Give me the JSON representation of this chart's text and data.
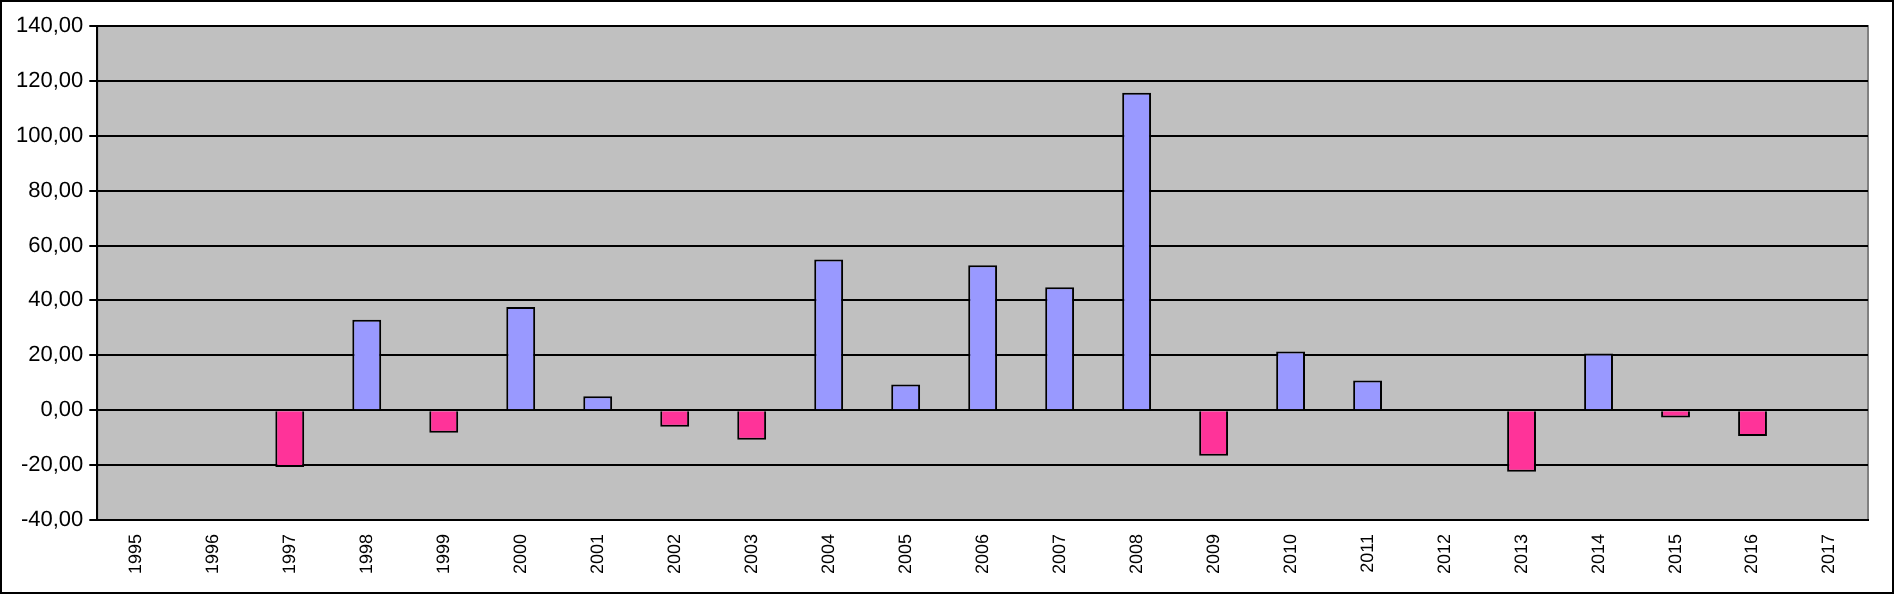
{
  "chart_data": {
    "type": "bar",
    "categories": [
      "1995",
      "1996",
      "1997",
      "1998",
      "1999",
      "2000",
      "2001",
      "2002",
      "2003",
      "2004",
      "2005",
      "2006",
      "2007",
      "2008",
      "2009",
      "2010",
      "2011",
      "2012",
      "2013",
      "2014",
      "2015",
      "2016",
      "2017"
    ],
    "values": [
      null,
      null,
      -20.7,
      33.0,
      -8.2,
      37.6,
      5.1,
      -6.0,
      -10.8,
      54.9,
      9.4,
      52.8,
      44.8,
      115.7,
      -16.6,
      21.4,
      10.8,
      null,
      -22.4,
      20.7,
      -2.7,
      -9.4,
      null
    ],
    "colors": [
      "#9999ff",
      "#9999ff",
      "#ff3399",
      "#9999ff",
      "#ff3399",
      "#9999ff",
      "#9999ff",
      "#ff3399",
      "#ff3399",
      "#9999ff",
      "#9999ff",
      "#9999ff",
      "#9999ff",
      "#9999ff",
      "#ff3399",
      "#9999ff",
      "#9999ff",
      "#9999ff",
      "#ff3399",
      "#9999ff",
      "#ff3399",
      "#ff3399",
      "#9999ff"
    ],
    "ylim": [
      -40,
      140
    ],
    "yticks": [
      {
        "value": -40,
        "label": "-40,00"
      },
      {
        "value": -20,
        "label": "-20,00"
      },
      {
        "value": 0,
        "label": "0,00"
      },
      {
        "value": 20,
        "label": "20,00"
      },
      {
        "value": 40,
        "label": "40,00"
      },
      {
        "value": 60,
        "label": "60,00"
      },
      {
        "value": 80,
        "label": "80,00"
      },
      {
        "value": 100,
        "label": "100,00"
      },
      {
        "value": 120,
        "label": "120,00"
      },
      {
        "value": 140,
        "label": "140,00"
      }
    ],
    "grid": "y",
    "legend": false
  }
}
